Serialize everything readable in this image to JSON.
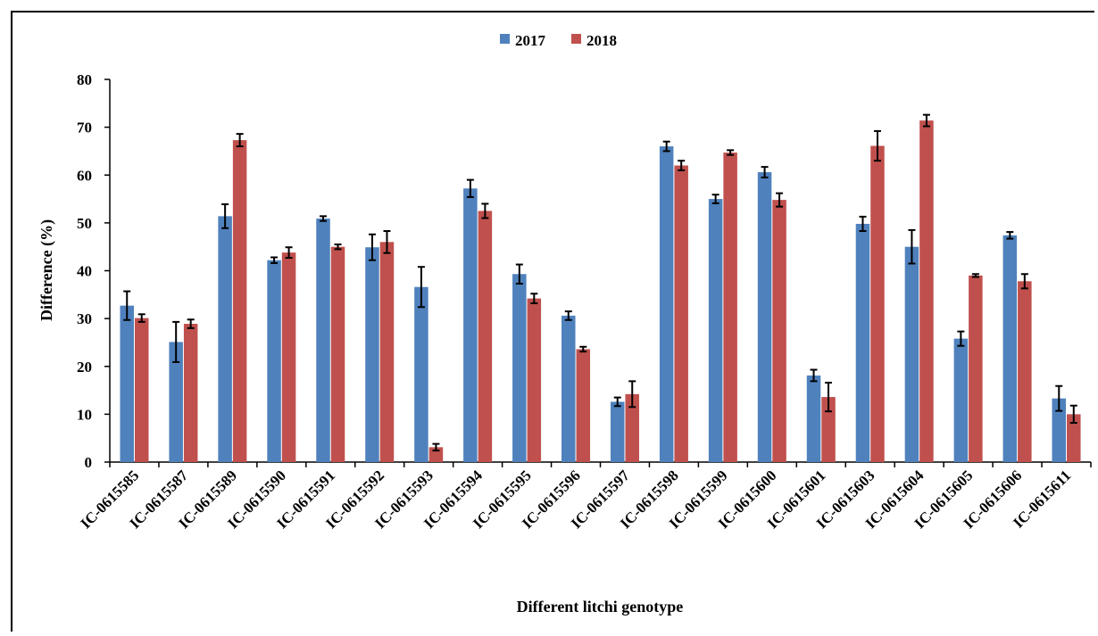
{
  "chart_data": {
    "type": "bar",
    "title": "",
    "xlabel": "Different litchi genotype",
    "ylabel": "Difference (%)",
    "ylim": [
      0,
      80
    ],
    "yticks": [
      "0",
      "10",
      "20",
      "30",
      "40",
      "50",
      "60",
      "70",
      "80"
    ],
    "legend_position": "top-center",
    "error_bars": true,
    "categories": [
      "IC-0615585",
      "IC-0615587",
      "IC-0615589",
      "IC-0615590",
      "IC-0615591",
      "IC-0615592",
      "IC-0615593",
      "IC-0615594",
      "IC-0615595",
      "IC-0615596",
      "IC-0615597",
      "IC-0615598",
      "IC-0615599",
      "IC-0615600",
      "IC-0615601",
      "IC-0615603",
      "IC-0615604",
      "IC-0615605",
      "IC-0615606",
      "IC-0615611"
    ],
    "series": [
      {
        "name": "2017",
        "color": "#4F81BD",
        "values": [
          32.7,
          25.1,
          51.4,
          42.2,
          50.9,
          44.9,
          36.6,
          57.2,
          39.3,
          30.6,
          12.6,
          66.0,
          55.0,
          60.6,
          18.1,
          49.8,
          45.0,
          25.8,
          47.4,
          13.3
        ],
        "errors": [
          3.0,
          4.2,
          2.5,
          0.6,
          0.5,
          2.7,
          4.2,
          1.8,
          2.0,
          0.9,
          0.9,
          1.0,
          0.9,
          1.1,
          1.2,
          1.5,
          3.5,
          1.5,
          0.7,
          2.6
        ]
      },
      {
        "name": "2018",
        "color": "#C0504D",
        "values": [
          30.1,
          28.9,
          67.3,
          43.8,
          45.0,
          46.0,
          3.1,
          52.5,
          34.2,
          23.6,
          14.2,
          62.0,
          64.7,
          54.8,
          13.6,
          66.1,
          71.4,
          39.0,
          37.8,
          10.0
        ],
        "errors": [
          0.8,
          0.9,
          1.3,
          1.1,
          0.5,
          2.3,
          0.7,
          1.5,
          1.0,
          0.5,
          2.7,
          1.0,
          0.5,
          1.4,
          3.0,
          3.1,
          1.2,
          0.3,
          1.5,
          1.8
        ]
      }
    ]
  }
}
